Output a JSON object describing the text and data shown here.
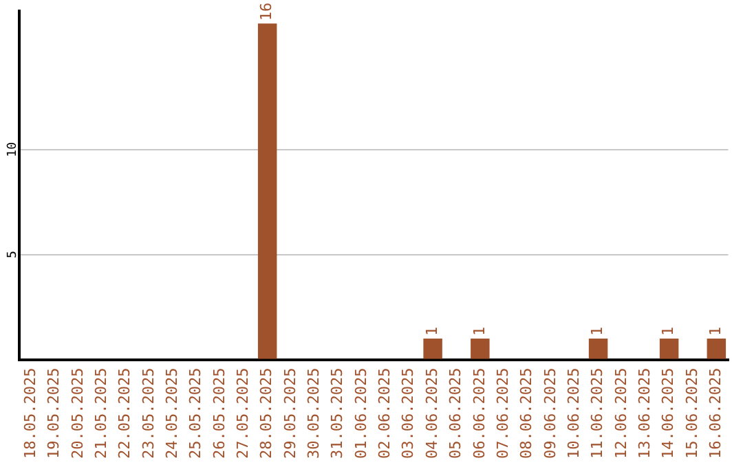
{
  "chart_data": {
    "type": "bar",
    "categories": [
      "18.05.2025",
      "19.05.2025",
      "20.05.2025",
      "21.05.2025",
      "22.05.2025",
      "23.05.2025",
      "24.05.2025",
      "25.05.2025",
      "26.05.2025",
      "27.05.2025",
      "28.05.2025",
      "29.05.2025",
      "30.05.2025",
      "31.05.2025",
      "01.06.2025",
      "02.06.2025",
      "03.06.2025",
      "04.06.2025",
      "05.06.2025",
      "06.06.2025",
      "07.06.2025",
      "08.06.2025",
      "09.06.2025",
      "10.06.2025",
      "11.06.2025",
      "12.06.2025",
      "13.06.2025",
      "14.06.2025",
      "15.06.2025",
      "16.06.2025"
    ],
    "values": [
      0,
      0,
      0,
      0,
      0,
      0,
      0,
      0,
      0,
      0,
      16,
      0,
      0,
      0,
      0,
      0,
      0,
      1,
      0,
      1,
      0,
      0,
      0,
      0,
      1,
      0,
      0,
      1,
      0,
      1
    ],
    "value_labels": [
      null,
      null,
      null,
      null,
      null,
      null,
      null,
      null,
      null,
      null,
      "16",
      null,
      null,
      null,
      null,
      null,
      null,
      "1",
      null,
      "1",
      null,
      null,
      null,
      null,
      "1",
      null,
      null,
      "1",
      null,
      "1"
    ],
    "color": "#a0522d",
    "ylim": [
      0,
      16.6
    ],
    "yticks": [
      {
        "value": 0,
        "label": null
      },
      5,
      10
    ],
    "grid": "y"
  }
}
